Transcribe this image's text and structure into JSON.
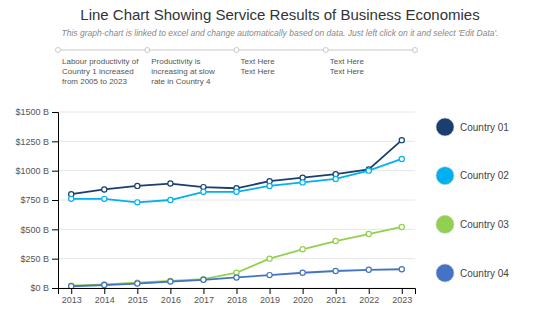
{
  "chart_data": {
    "type": "line",
    "title": "Line Chart Showing Service Results of Business Economies",
    "subtitle": "This graph-chart is linked to excel and change automatically based on data. Just left click on it and select 'Edit Data'.",
    "annotations": [
      "Labour productivity of\nCountry 1 increased\nfrom 2005 to 2023",
      "Productivity is\nincreasing at slow\nrate in Country 4",
      "Text Here\nText Here",
      "Text Here\nText Here"
    ],
    "x": [
      2013,
      2014,
      2015,
      2016,
      2017,
      2018,
      2019,
      2020,
      2021,
      2022,
      2023
    ],
    "xlim": [
      2012.6,
      2023.4
    ],
    "xticks": [
      2013,
      2014,
      2015,
      2016,
      2017,
      2018,
      2019,
      2020,
      2021,
      2022,
      2023
    ],
    "ylim": [
      0,
      1500
    ],
    "yticks": [
      {
        "value": 0,
        "label": "$0 B"
      },
      {
        "value": 250,
        "label": "$250 B"
      },
      {
        "value": 500,
        "label": "$500 B"
      },
      {
        "value": 750,
        "label": "$750 B"
      },
      {
        "value": 1000,
        "label": "$1000 B"
      },
      {
        "value": 1250,
        "label": "$1250 B"
      },
      {
        "value": 1500,
        "label": "$1500 B"
      }
    ],
    "grid": true,
    "legend": "right",
    "marker": "circle",
    "series": [
      {
        "name": "Country 01",
        "color": "#1a3f6f",
        "values": [
          800,
          840,
          870,
          890,
          860,
          850,
          910,
          940,
          970,
          1010,
          1260
        ]
      },
      {
        "name": "Country 02",
        "color": "#00b0f0",
        "values": [
          760,
          760,
          730,
          750,
          820,
          820,
          870,
          900,
          930,
          1000,
          1100
        ]
      },
      {
        "name": "Country 03",
        "color": "#92d050",
        "values": [
          20,
          30,
          45,
          60,
          75,
          130,
          250,
          330,
          400,
          460,
          520
        ]
      },
      {
        "name": "Country 04",
        "color": "#4472c4",
        "values": [
          15,
          25,
          38,
          55,
          70,
          90,
          110,
          130,
          145,
          155,
          160
        ]
      }
    ]
  }
}
